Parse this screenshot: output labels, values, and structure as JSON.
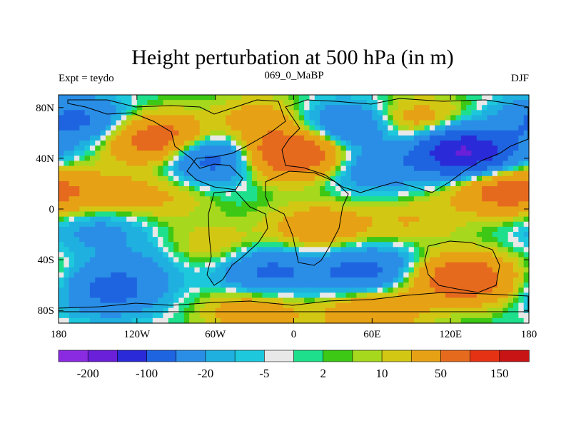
{
  "chart_data": {
    "type": "heatmap",
    "title": "Height perturbation at 500 hPa (in m)",
    "left_label": "Expt = teydo",
    "center_label": "069_0_MaBP",
    "right_label": "DJF",
    "x_ticks": [
      "180",
      "120W",
      "60W",
      "0",
      "60E",
      "120E",
      "180"
    ],
    "x_tick_values": [
      -180,
      -120,
      -60,
      0,
      60,
      120,
      180
    ],
    "y_ticks": [
      "80N",
      "40N",
      "0",
      "40S",
      "80S"
    ],
    "y_tick_values": [
      80,
      40,
      0,
      -40,
      -80
    ],
    "xlim": [
      -180,
      180
    ],
    "ylim": [
      -90,
      90
    ],
    "colorbar": {
      "colors": [
        "#8a2be2",
        "#6a1fd8",
        "#2a2ad8",
        "#1e64e0",
        "#2a8ee6",
        "#1fb0e0",
        "#1ec8dc",
        "#e8e8e8",
        "#1ee08c",
        "#3cc814",
        "#a6d81e",
        "#d2c814",
        "#e6a214",
        "#e66a1e",
        "#e63214",
        "#c81414"
      ],
      "labels": [
        "-200",
        "-100",
        "-20",
        "-5",
        "2",
        "10",
        "50",
        "150"
      ]
    },
    "anomaly_centers": [
      {
        "lon": -165,
        "lat": 70,
        "value": -60
      },
      {
        "lon": -105,
        "lat": 55,
        "value": 80
      },
      {
        "lon": -100,
        "lat": 10,
        "value": 20
      },
      {
        "lon": -60,
        "lat": 40,
        "value": -80
      },
      {
        "lon": -25,
        "lat": 70,
        "value": 30
      },
      {
        "lon": -15,
        "lat": 42,
        "value": 60
      },
      {
        "lon": 10,
        "lat": 45,
        "value": 60
      },
      {
        "lon": 40,
        "lat": 65,
        "value": -60
      },
      {
        "lon": 60,
        "lat": 32,
        "value": -40
      },
      {
        "lon": 95,
        "lat": 68,
        "value": 40
      },
      {
        "lon": 130,
        "lat": 45,
        "value": -160
      },
      {
        "lon": 160,
        "lat": 15,
        "value": 70
      },
      {
        "lon": -150,
        "lat": 10,
        "value": 30
      },
      {
        "lon": -150,
        "lat": -15,
        "value": -30
      },
      {
        "lon": -60,
        "lat": -30,
        "value": 20
      },
      {
        "lon": 20,
        "lat": -15,
        "value": 40
      },
      {
        "lon": 90,
        "lat": -10,
        "value": 20
      },
      {
        "lon": -140,
        "lat": -65,
        "value": -60
      },
      {
        "lon": -120,
        "lat": -45,
        "value": -20
      },
      {
        "lon": -20,
        "lat": -50,
        "value": -60
      },
      {
        "lon": 50,
        "lat": -50,
        "value": -60
      },
      {
        "lon": 75,
        "lat": -40,
        "value": -10
      },
      {
        "lon": 130,
        "lat": -55,
        "value": 90
      },
      {
        "lon": 60,
        "lat": -80,
        "value": 50
      },
      {
        "lon": -30,
        "lat": -80,
        "value": 40
      }
    ]
  }
}
